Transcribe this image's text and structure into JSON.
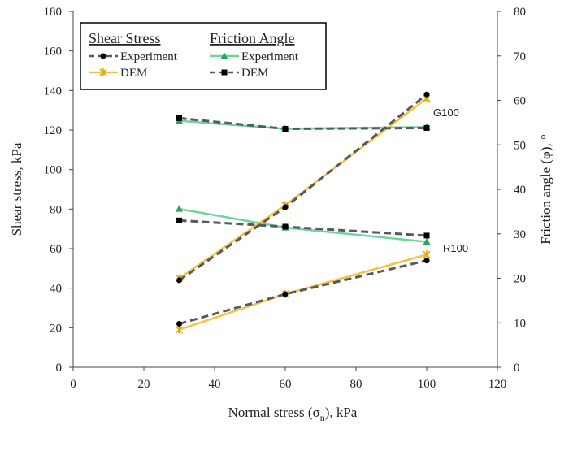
{
  "chart_data": {
    "type": "line",
    "xlabel": "Normal stress (σn), kPa",
    "xlabel_main": "Normal stress (σ",
    "xlabel_sub": "n",
    "xlabel_end": "), kPa",
    "ylabel": "Shear stress, kPa",
    "y2label": "Friction angle (φ), °",
    "xlim": [
      0,
      120
    ],
    "ylim": [
      0,
      180
    ],
    "y2lim": [
      0,
      80
    ],
    "xticks": [
      0,
      20,
      40,
      60,
      80,
      100,
      120
    ],
    "yticks": [
      0,
      20,
      40,
      60,
      80,
      100,
      120,
      140,
      160,
      180
    ],
    "y2ticks": [
      0,
      10,
      20,
      30,
      40,
      50,
      60,
      70,
      80
    ],
    "legend": {
      "shear_title": "Shear Stress",
      "friction_title": "Friction Angle",
      "entries": {
        "shear_exp": "Experiment",
        "shear_dem": "DEM",
        "fric_exp": "Experiment",
        "fric_dem": "DEM"
      }
    },
    "annotations": [
      "G100",
      "R100"
    ],
    "colors": {
      "dark_dash": "#555a5f",
      "dem_gold": "#f5c242",
      "exp_green": "#6fd39a",
      "marker_black": "#000000",
      "marker_green": "#22a85a"
    },
    "series": [
      {
        "key": "g100_shear_exp",
        "axis": "y",
        "style": "dark-dash",
        "marker": "circle",
        "x": [
          30,
          60,
          100
        ],
        "values": [
          44,
          81,
          138
        ]
      },
      {
        "key": "g100_shear_dem",
        "axis": "y",
        "style": "gold",
        "marker": "star",
        "x": [
          30,
          60,
          100
        ],
        "values": [
          45,
          82,
          136
        ]
      },
      {
        "key": "r100_shear_exp",
        "axis": "y",
        "style": "dark-dash",
        "marker": "circle",
        "x": [
          30,
          60,
          100
        ],
        "values": [
          22,
          37,
          54
        ]
      },
      {
        "key": "r100_shear_dem",
        "axis": "y",
        "style": "gold",
        "marker": "star",
        "x": [
          30,
          60,
          100
        ],
        "values": [
          19,
          37,
          57
        ]
      },
      {
        "key": "g100_fric_exp",
        "axis": "y2",
        "style": "green",
        "marker": "triangle",
        "x": [
          30,
          60,
          100
        ],
        "values": [
          55.4,
          53.6,
          54.0
        ]
      },
      {
        "key": "g100_fric_dem",
        "axis": "y2",
        "style": "dark-dash",
        "marker": "square",
        "x": [
          30,
          60,
          100
        ],
        "values": [
          56.0,
          53.6,
          53.8
        ]
      },
      {
        "key": "r100_fric_exp",
        "axis": "y2",
        "style": "green",
        "marker": "triangle",
        "x": [
          30,
          60,
          100
        ],
        "values": [
          35.6,
          31.4,
          28.2
        ]
      },
      {
        "key": "r100_fric_dem",
        "axis": "y2",
        "style": "dark-dash",
        "marker": "square",
        "x": [
          30,
          60,
          100
        ],
        "values": [
          33.0,
          31.6,
          29.6
        ]
      }
    ]
  }
}
